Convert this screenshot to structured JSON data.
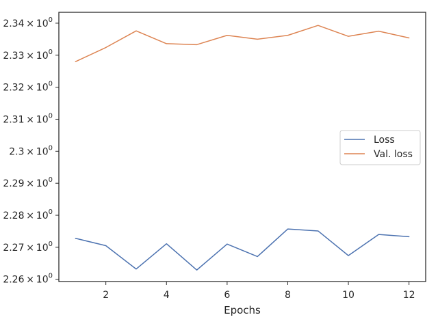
{
  "chart_data": {
    "type": "line",
    "xlabel": "Epochs",
    "ylabel": "",
    "title": "",
    "xlim": [
      0.45,
      12.55
    ],
    "ylim": [
      2.2593,
      2.3434
    ],
    "x_ticks": [
      2,
      4,
      6,
      8,
      10,
      12
    ],
    "x_tick_labels": [
      "2",
      "4",
      "6",
      "8",
      "10",
      "12"
    ],
    "y_ticks": [
      2.26,
      2.27,
      2.28,
      2.29,
      2.3,
      2.31,
      2.32,
      2.33,
      2.34
    ],
    "y_tick_bases": [
      "2.26",
      "2.27",
      "2.28",
      "2.29",
      "2.3",
      "2.31",
      "2.32",
      "2.33",
      "2.34"
    ],
    "y_tick_sep": "×",
    "y_tick_power": "10",
    "y_tick_exp": "0",
    "grid": false,
    "legend_position": "center-right",
    "x": [
      1,
      2,
      3,
      4,
      5,
      6,
      7,
      8,
      9,
      10,
      11,
      12
    ],
    "series": [
      {
        "name": "Loss",
        "color": "#4c72b0",
        "values": [
          2.2728,
          2.2705,
          2.2632,
          2.2711,
          2.2629,
          2.271,
          2.2671,
          2.2757,
          2.2751,
          2.2674,
          2.274,
          2.2733
        ]
      },
      {
        "name": "Val. loss",
        "color": "#dd8452",
        "values": [
          2.328,
          2.3324,
          2.3376,
          2.3336,
          2.3333,
          2.3362,
          2.335,
          2.3362,
          2.3393,
          2.3359,
          2.3375,
          2.3354
        ]
      }
    ]
  }
}
